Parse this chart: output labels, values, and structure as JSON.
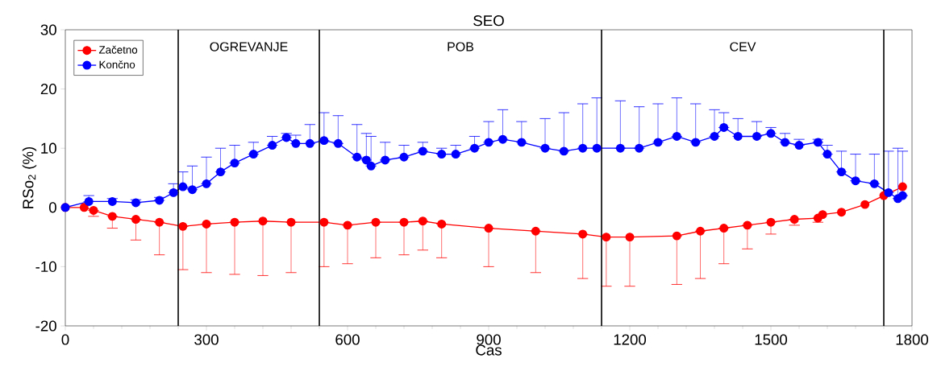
{
  "chart_data": {
    "type": "line",
    "title": "SEO",
    "xlabel": "Cas",
    "ylabel": "RSo$_{2}$ (%)",
    "xlim": [
      0,
      1800
    ],
    "xticks": [
      0,
      300,
      600,
      900,
      1200,
      1500,
      1800
    ],
    "ylim": [
      -20,
      30
    ],
    "yticks": [
      -20,
      -10,
      0,
      10,
      20,
      30
    ],
    "legend": "top left",
    "marker": "circle",
    "line_style": "solid",
    "series": [
      {
        "name": "Začetno",
        "color": "#ff0000",
        "x": [
          0,
          40,
          60,
          100,
          150,
          200,
          250,
          300,
          360,
          420,
          480,
          550,
          600,
          660,
          720,
          760,
          800,
          900,
          1000,
          1100,
          1150,
          1200,
          1300,
          1350,
          1400,
          1450,
          1500,
          1550,
          1600,
          1610,
          1650,
          1700,
          1740,
          1780
        ],
        "values": [
          0,
          0,
          -0.5,
          -1.5,
          -2,
          -2.5,
          -3.2,
          -2.8,
          -2.5,
          -2.3,
          -2.5,
          -2.5,
          -3,
          -2.5,
          -2.5,
          -2.3,
          -2.8,
          -3.5,
          -4,
          -4.5,
          -5,
          -5,
          -4.8,
          -4,
          -3.5,
          -3,
          -2.5,
          -2,
          -1.8,
          -1.2,
          -0.8,
          0.5,
          2,
          3.5
        ],
        "errors": [
          null,
          null,
          [
            -1.5,
            -0.5
          ],
          [
            -3.5,
            -1.5
          ],
          [
            -5.5,
            -2
          ],
          [
            -8,
            -2.5
          ],
          [
            -10.5,
            -3.2
          ],
          [
            -11,
            -2.8
          ],
          [
            -11.3,
            -2.5
          ],
          [
            -11.5,
            -2.3
          ],
          [
            -11,
            -2.5
          ],
          [
            -10,
            -2.5
          ],
          [
            -9.5,
            -3
          ],
          [
            -8.5,
            -2.5
          ],
          [
            -8,
            -2.5
          ],
          [
            -7.2,
            -2.3
          ],
          [
            -8.5,
            -2.8
          ],
          [
            -10,
            -3.5
          ],
          [
            -11,
            -4
          ],
          [
            -12,
            -4.5
          ],
          [
            -13.3,
            -5
          ],
          [
            -13.3,
            -5
          ],
          [
            -13,
            -4.8
          ],
          [
            -12,
            -4
          ],
          [
            -9.5,
            -3.5
          ],
          [
            -7,
            -3
          ],
          [
            -4.5,
            -2.5
          ],
          [
            -3,
            -2
          ],
          [
            -2.5,
            -1.8
          ],
          null,
          null,
          null,
          null,
          null
        ]
      },
      {
        "name": "Končno",
        "color": "#0000ff",
        "x": [
          0,
          50,
          100,
          150,
          200,
          230,
          250,
          270,
          300,
          330,
          360,
          400,
          440,
          470,
          490,
          520,
          550,
          580,
          620,
          640,
          650,
          680,
          720,
          760,
          800,
          830,
          870,
          900,
          930,
          970,
          1020,
          1060,
          1100,
          1130,
          1180,
          1220,
          1260,
          1300,
          1340,
          1380,
          1400,
          1430,
          1470,
          1500,
          1530,
          1560,
          1600,
          1620,
          1650,
          1680,
          1720,
          1750,
          1770,
          1780
        ],
        "values": [
          0,
          1,
          1,
          0.8,
          1.2,
          2.5,
          3.5,
          3,
          4,
          6,
          7.5,
          9,
          10.5,
          11.8,
          10.8,
          10.8,
          11.3,
          10.8,
          8.5,
          8,
          7,
          8,
          8.5,
          9.5,
          9,
          9,
          10,
          11,
          11.5,
          11,
          10,
          9.5,
          10,
          10,
          10,
          10,
          11,
          12,
          11,
          12,
          13.5,
          12,
          12,
          12.5,
          11,
          10.5,
          11,
          9,
          6,
          4.5,
          4,
          2.5,
          1.5,
          2
        ],
        "errors": [
          null,
          [
            1,
            2
          ],
          [
            1,
            1.5
          ],
          [
            0.8,
            1.3
          ],
          [
            1.2,
            1.7
          ],
          [
            2.5,
            4
          ],
          [
            3.5,
            6
          ],
          [
            3,
            7
          ],
          [
            4,
            8.5
          ],
          [
            6,
            10
          ],
          [
            7.5,
            10.5
          ],
          [
            9,
            11
          ],
          [
            10.5,
            12
          ],
          [
            11.8,
            12.5
          ],
          [
            10.8,
            12.2
          ],
          [
            10.8,
            14
          ],
          [
            11.3,
            16
          ],
          [
            10.8,
            15.5
          ],
          [
            8.5,
            14
          ],
          [
            8,
            12.5
          ],
          [
            7,
            12
          ],
          [
            8,
            11
          ],
          [
            8.5,
            10.5
          ],
          [
            9.5,
            11
          ],
          [
            9,
            10
          ],
          [
            9,
            10.5
          ],
          [
            10,
            12
          ],
          [
            11,
            14.5
          ],
          [
            11.5,
            16.5
          ],
          [
            11,
            14.5
          ],
          [
            10,
            15
          ],
          [
            9.5,
            16
          ],
          [
            10,
            17.5
          ],
          [
            10,
            18.5
          ],
          [
            10,
            18
          ],
          [
            10,
            17
          ],
          [
            11,
            17.5
          ],
          [
            12,
            18.5
          ],
          [
            11,
            17.5
          ],
          [
            12,
            16.5
          ],
          [
            13.5,
            16
          ],
          [
            12,
            15
          ],
          [
            12,
            14.5
          ],
          [
            12.5,
            13.5
          ],
          [
            11,
            12.5
          ],
          [
            10.5,
            11.5
          ],
          [
            11,
            11.5
          ],
          [
            9,
            10.5
          ],
          [
            6,
            9.5
          ],
          [
            4.5,
            9
          ],
          [
            4,
            9
          ],
          [
            2.5,
            9.5
          ],
          [
            1.5,
            10
          ],
          [
            2,
            9.5
          ]
        ]
      }
    ],
    "ref_lines": [
      {
        "axis": "x",
        "value": 240,
        "color": "#000000"
      },
      {
        "axis": "x",
        "value": 540,
        "color": "#000000"
      },
      {
        "axis": "x",
        "value": 1140,
        "color": "#000000"
      },
      {
        "axis": "x",
        "value": 1740,
        "color": "#000000"
      }
    ],
    "annotations": [
      "OGREVANJE",
      "POB",
      "CEV"
    ]
  }
}
